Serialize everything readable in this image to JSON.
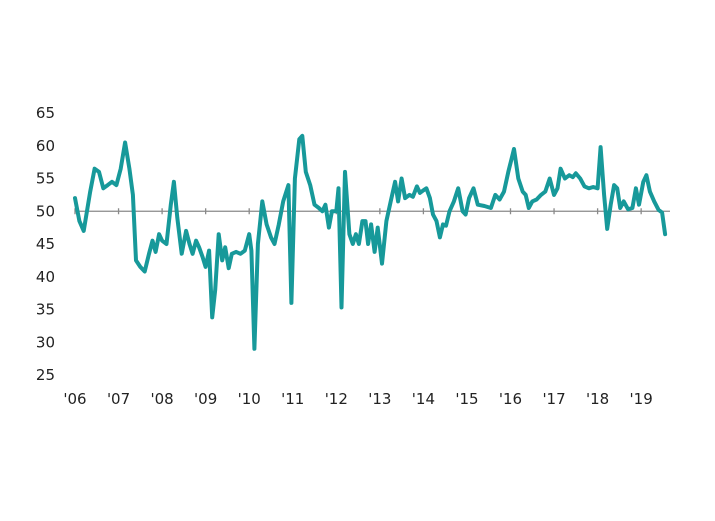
{
  "chart_data": {
    "type": "line",
    "title": "",
    "xlabel": "",
    "ylabel": "",
    "ylim": [
      25,
      65
    ],
    "yticks": [
      "25",
      "30",
      "35",
      "40",
      "45",
      "50",
      "55",
      "60",
      "65"
    ],
    "reference_line_y": 50,
    "xlim": [
      2006.0,
      2019.7
    ],
    "xticks": [
      {
        "x": 2006,
        "label": "'06"
      },
      {
        "x": 2007,
        "label": "'07"
      },
      {
        "x": 2008,
        "label": "'08"
      },
      {
        "x": 2009,
        "label": "'09"
      },
      {
        "x": 2010,
        "label": "'10"
      },
      {
        "x": 2011,
        "label": "'11"
      },
      {
        "x": 2012,
        "label": "'12"
      },
      {
        "x": 2013,
        "label": "'13"
      },
      {
        "x": 2014,
        "label": "'14"
      },
      {
        "x": 2015,
        "label": "'15"
      },
      {
        "x": 2016,
        "label": "'16"
      },
      {
        "x": 2017,
        "label": "'17"
      },
      {
        "x": 2018,
        "label": "'18"
      },
      {
        "x": 2019,
        "label": "'19"
      }
    ],
    "grid": false,
    "series": [
      {
        "color": "#17999a",
        "points": [
          [
            2006.0,
            52.0
          ],
          [
            2006.1,
            48.5
          ],
          [
            2006.2,
            47.0
          ],
          [
            2006.35,
            53.0
          ],
          [
            2006.45,
            56.5
          ],
          [
            2006.55,
            56.0
          ],
          [
            2006.65,
            53.5
          ],
          [
            2006.75,
            54.0
          ],
          [
            2006.85,
            54.5
          ],
          [
            2006.95,
            54.0
          ],
          [
            2007.05,
            56.5
          ],
          [
            2007.15,
            60.5
          ],
          [
            2007.25,
            56.5
          ],
          [
            2007.33,
            52.5
          ],
          [
            2007.4,
            42.5
          ],
          [
            2007.5,
            41.5
          ],
          [
            2007.6,
            40.8
          ],
          [
            2007.7,
            43.5
          ],
          [
            2007.78,
            45.5
          ],
          [
            2007.85,
            43.8
          ],
          [
            2007.93,
            46.5
          ],
          [
            2008.0,
            45.5
          ],
          [
            2008.1,
            45.0
          ],
          [
            2008.2,
            51.0
          ],
          [
            2008.27,
            54.5
          ],
          [
            2008.35,
            49.0
          ],
          [
            2008.45,
            43.5
          ],
          [
            2008.55,
            47.0
          ],
          [
            2008.63,
            45.0
          ],
          [
            2008.7,
            43.5
          ],
          [
            2008.78,
            45.5
          ],
          [
            2008.85,
            44.5
          ],
          [
            2008.93,
            43.0
          ],
          [
            2009.0,
            41.5
          ],
          [
            2009.08,
            44.0
          ],
          [
            2009.15,
            33.8
          ],
          [
            2009.22,
            38.0
          ],
          [
            2009.3,
            46.5
          ],
          [
            2009.38,
            42.5
          ],
          [
            2009.45,
            44.5
          ],
          [
            2009.53,
            41.3
          ],
          [
            2009.6,
            43.5
          ],
          [
            2009.7,
            43.8
          ],
          [
            2009.8,
            43.5
          ],
          [
            2009.9,
            44.0
          ],
          [
            2010.0,
            46.5
          ],
          [
            2010.05,
            44.0
          ],
          [
            2010.12,
            29.0
          ],
          [
            2010.2,
            45.0
          ],
          [
            2010.3,
            51.5
          ],
          [
            2010.4,
            48.0
          ],
          [
            2010.5,
            46.0
          ],
          [
            2010.58,
            45.0
          ],
          [
            2010.68,
            48.0
          ],
          [
            2010.78,
            51.5
          ],
          [
            2010.9,
            54.0
          ],
          [
            2010.97,
            36.0
          ],
          [
            2011.05,
            55.0
          ],
          [
            2011.15,
            61.0
          ],
          [
            2011.22,
            61.5
          ],
          [
            2011.3,
            56.0
          ],
          [
            2011.4,
            54.0
          ],
          [
            2011.5,
            51.0
          ],
          [
            2011.6,
            50.5
          ],
          [
            2011.68,
            50.0
          ],
          [
            2011.75,
            51.0
          ],
          [
            2011.83,
            47.5
          ],
          [
            2011.9,
            50.0
          ],
          [
            2012.0,
            50.0
          ],
          [
            2012.05,
            53.5
          ],
          [
            2012.12,
            35.3
          ],
          [
            2012.2,
            56.0
          ],
          [
            2012.3,
            46.5
          ],
          [
            2012.38,
            45.0
          ],
          [
            2012.45,
            46.5
          ],
          [
            2012.52,
            45.0
          ],
          [
            2012.6,
            48.5
          ],
          [
            2012.67,
            48.5
          ],
          [
            2012.73,
            45.0
          ],
          [
            2012.8,
            48.0
          ],
          [
            2012.88,
            43.8
          ],
          [
            2012.95,
            47.5
          ],
          [
            2013.05,
            42.0
          ],
          [
            2013.15,
            48.5
          ],
          [
            2013.25,
            51.5
          ],
          [
            2013.35,
            54.5
          ],
          [
            2013.42,
            51.5
          ],
          [
            2013.5,
            55.0
          ],
          [
            2013.58,
            52.0
          ],
          [
            2013.68,
            52.5
          ],
          [
            2013.76,
            52.2
          ],
          [
            2013.85,
            53.8
          ],
          [
            2013.92,
            52.8
          ],
          [
            2014.0,
            53.2
          ],
          [
            2014.07,
            53.5
          ],
          [
            2014.15,
            52.0
          ],
          [
            2014.22,
            49.5
          ],
          [
            2014.3,
            48.5
          ],
          [
            2014.38,
            46.0
          ],
          [
            2014.45,
            48.0
          ],
          [
            2014.52,
            47.8
          ],
          [
            2014.6,
            50.0
          ],
          [
            2014.7,
            51.5
          ],
          [
            2014.8,
            53.5
          ],
          [
            2014.9,
            50.0
          ],
          [
            2014.97,
            49.5
          ],
          [
            2015.05,
            52.0
          ],
          [
            2015.15,
            53.5
          ],
          [
            2015.25,
            51.0
          ],
          [
            2015.4,
            50.8
          ],
          [
            2015.55,
            50.5
          ],
          [
            2015.65,
            52.5
          ],
          [
            2015.75,
            51.8
          ],
          [
            2015.85,
            53.0
          ],
          [
            2015.95,
            56.0
          ],
          [
            2016.08,
            59.5
          ],
          [
            2016.18,
            55.0
          ],
          [
            2016.28,
            53.0
          ],
          [
            2016.35,
            52.5
          ],
          [
            2016.42,
            50.5
          ],
          [
            2016.5,
            51.5
          ],
          [
            2016.6,
            51.8
          ],
          [
            2016.7,
            52.5
          ],
          [
            2016.8,
            53.0
          ],
          [
            2016.9,
            55.0
          ],
          [
            2017.0,
            52.5
          ],
          [
            2017.08,
            53.5
          ],
          [
            2017.15,
            56.5
          ],
          [
            2017.25,
            55.0
          ],
          [
            2017.35,
            55.5
          ],
          [
            2017.43,
            55.2
          ],
          [
            2017.5,
            55.8
          ],
          [
            2017.6,
            55.0
          ],
          [
            2017.7,
            53.8
          ],
          [
            2017.8,
            53.5
          ],
          [
            2017.9,
            53.7
          ],
          [
            2018.0,
            53.5
          ],
          [
            2018.07,
            59.8
          ],
          [
            2018.15,
            52.5
          ],
          [
            2018.22,
            47.3
          ],
          [
            2018.3,
            51.0
          ],
          [
            2018.38,
            54.0
          ],
          [
            2018.45,
            53.5
          ],
          [
            2018.52,
            50.5
          ],
          [
            2018.6,
            51.5
          ],
          [
            2018.7,
            50.3
          ],
          [
            2018.8,
            50.5
          ],
          [
            2018.88,
            53.5
          ],
          [
            2018.95,
            51.0
          ],
          [
            2019.05,
            54.5
          ],
          [
            2019.12,
            55.5
          ],
          [
            2019.2,
            53.0
          ],
          [
            2019.3,
            51.5
          ],
          [
            2019.4,
            50.2
          ],
          [
            2019.48,
            49.8
          ],
          [
            2019.55,
            46.5
          ]
        ]
      }
    ]
  }
}
